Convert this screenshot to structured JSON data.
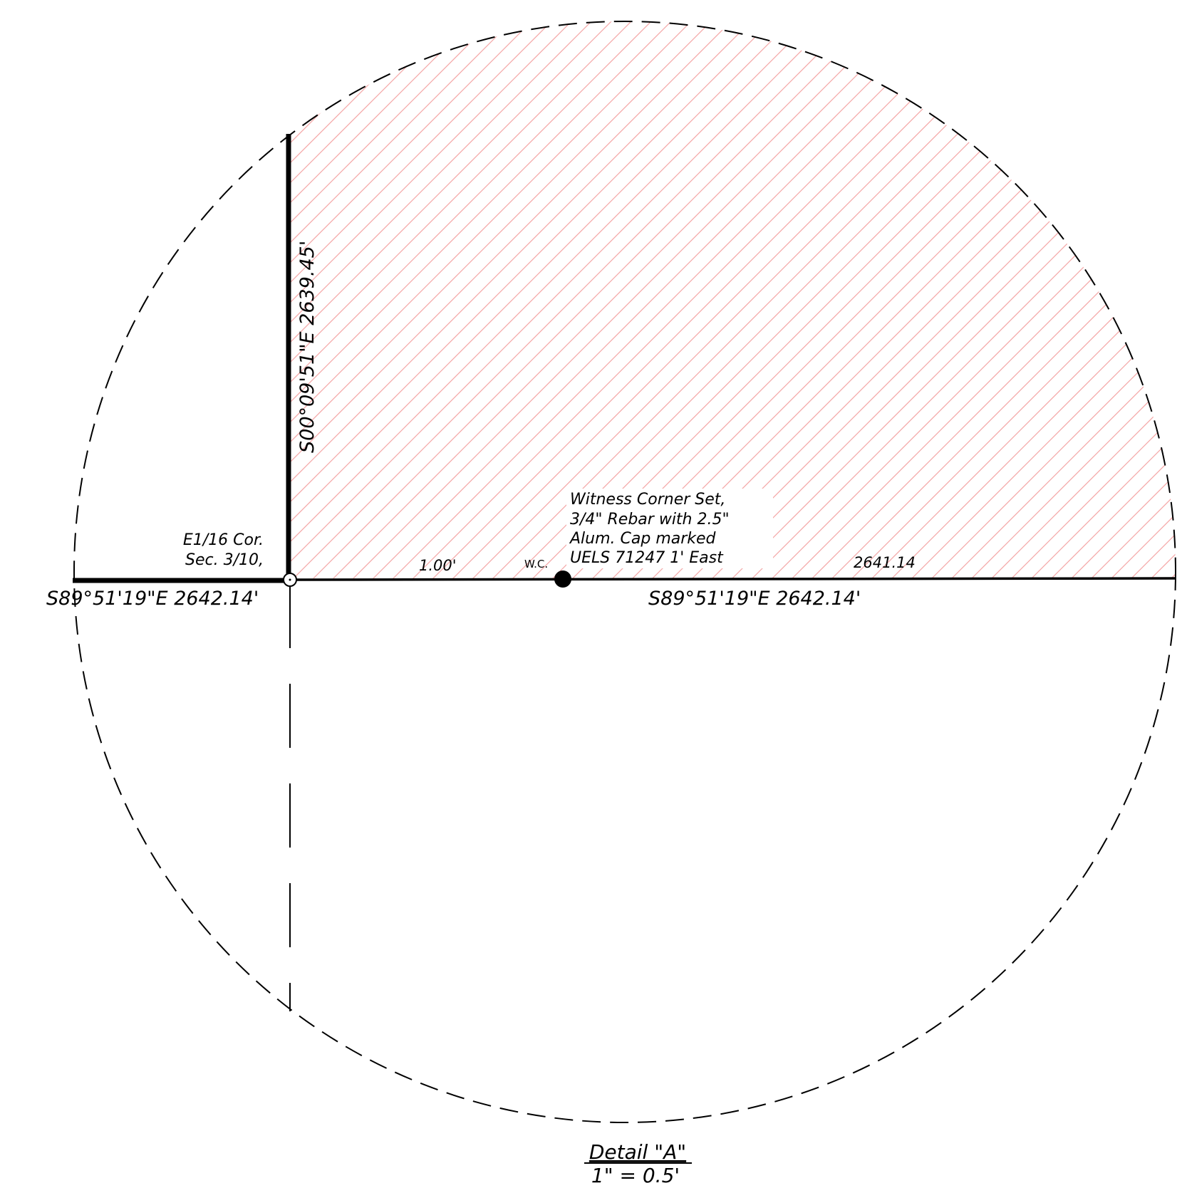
{
  "colors": {
    "line": "#000000",
    "hatch": "#f4a6a6",
    "background": "#ffffff"
  },
  "labels": {
    "corner_line1": "E1/16 Cor.",
    "corner_line2": "Sec. 3/10,",
    "west_bearing": "S89°51'19\"E  2642.14'",
    "east_bearing": "S89°51'19\"E  2642.14'",
    "north_bearing": "S00°09'51\"E  2639.45'",
    "offset_distance": "1.00'",
    "wc_marker": "W.C.",
    "remaining_distance": "2641.14",
    "witness_note": [
      "Witness Corner Set,",
      "3/4\" Rebar with 2.5\"",
      "Alum. Cap marked",
      "UELS 71247 1' East"
    ],
    "detail_title": "Detail \"A\"",
    "detail_scale": "1\" = 0.5'"
  }
}
